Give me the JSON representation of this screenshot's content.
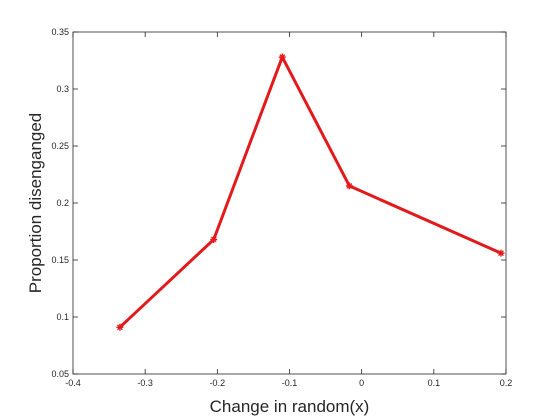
{
  "chart_data": {
    "type": "line",
    "title": "",
    "xlabel": "Change in random(x)",
    "ylabel": "Proportion disenganged",
    "xlim": [
      -0.4,
      0.2
    ],
    "ylim": [
      0.05,
      0.35
    ],
    "xticks": [
      -0.4,
      -0.3,
      -0.2,
      -0.1,
      0,
      0.1,
      0.2
    ],
    "xtick_labels": [
      "-0.4",
      "-0.3",
      "-0.2",
      "-0.1",
      "0",
      "0.1",
      "0.2"
    ],
    "yticks": [
      0.05,
      0.1,
      0.15,
      0.2,
      0.25,
      0.3,
      0.35
    ],
    "ytick_labels": [
      "0.05",
      "0.1",
      "0.15",
      "0.2",
      "0.25",
      "0.3",
      "0.35"
    ],
    "grid": false,
    "series": [
      {
        "name": "proportion",
        "color": "#e31a1c",
        "marker": "asterisk",
        "x": [
          -0.335,
          -0.205,
          -0.11,
          -0.017,
          0.193
        ],
        "y": [
          0.091,
          0.168,
          0.328,
          0.215,
          0.156
        ]
      }
    ]
  }
}
